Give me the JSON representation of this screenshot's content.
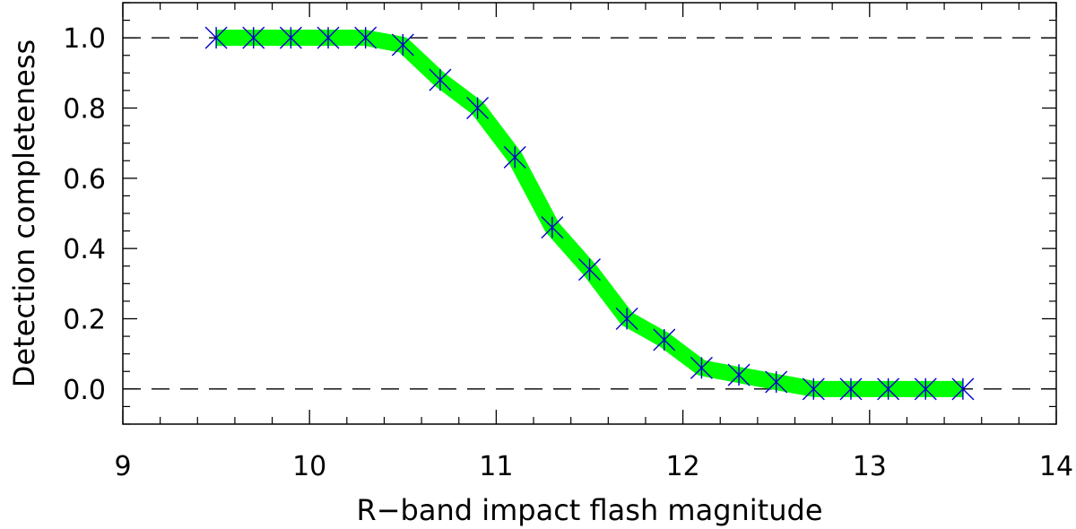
{
  "chart_data": {
    "type": "line",
    "title": "",
    "xlabel": "R−band impact flash magnitude",
    "ylabel": "Detection completeness",
    "xlim": [
      9,
      14
    ],
    "ylim": [
      -0.1,
      1.1
    ],
    "x_ticks": [
      9,
      10,
      11,
      12,
      13,
      14
    ],
    "x_tick_labels": [
      "9",
      "10",
      "11",
      "12",
      "13",
      "14"
    ],
    "y_ticks": [
      0.0,
      0.2,
      0.4,
      0.6,
      0.8,
      1.0
    ],
    "y_tick_labels": [
      "0.0",
      "0.2",
      "0.4",
      "0.6",
      "0.8",
      "1.0"
    ],
    "x_minor_step": 0.2,
    "y_minor_step": 0.05,
    "reference_lines": [
      0.0,
      1.0
    ],
    "grid": false,
    "series": [
      {
        "x": [
          9.5,
          9.7,
          9.9,
          10.1,
          10.3,
          10.5,
          10.7,
          10.9,
          11.1,
          11.3,
          11.5,
          11.7,
          11.9,
          12.1,
          12.3,
          12.5,
          12.7,
          12.9,
          13.1,
          13.3,
          13.5
        ],
        "values": [
          1.0,
          1.0,
          1.0,
          1.0,
          1.0,
          0.98,
          0.88,
          0.8,
          0.66,
          0.46,
          0.34,
          0.2,
          0.14,
          0.06,
          0.04,
          0.02,
          0.0,
          0.0,
          0.0,
          0.0,
          0.0
        ],
        "line_color": "#00ff00",
        "marker_color": "#0000cc",
        "marker": "asterisk"
      }
    ]
  }
}
